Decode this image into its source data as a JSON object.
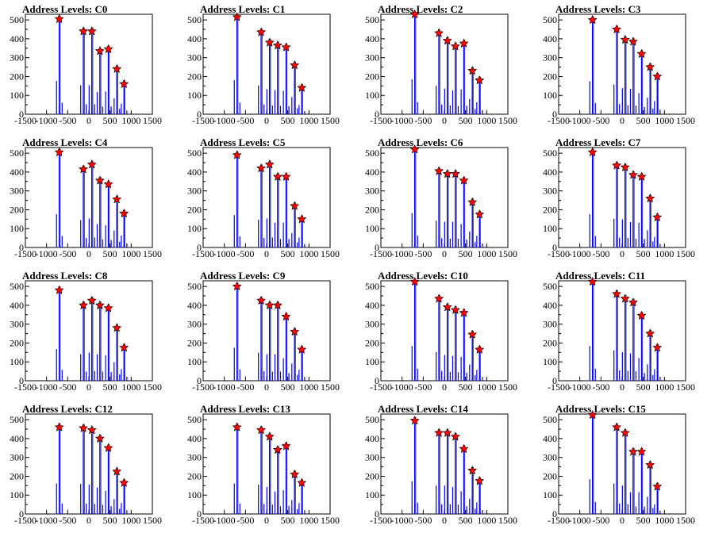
{
  "chart_data": {
    "type": "bar",
    "ytick_values": [
      0,
      100,
      200,
      300,
      400,
      500
    ],
    "xtick_values": [
      -1500,
      -1000,
      -500,
      0,
      500,
      1000,
      1500
    ],
    "xlim": [
      -1500,
      1500
    ],
    "ylim": [
      0,
      530
    ],
    "colors": {
      "bars": "#0000ff",
      "peaks": "#ff0000",
      "tallest_bar": "#000000"
    },
    "peak_x": [
      -700,
      -130,
      70,
      260,
      460,
      660,
      830
    ],
    "panels": [
      {
        "title": "Address Levels: C0",
        "peaks": [
          505,
          440,
          440,
          335,
          345,
          240,
          160
        ]
      },
      {
        "title": "Address Levels: C1",
        "peaks": [
          515,
          435,
          380,
          365,
          355,
          260,
          140
        ]
      },
      {
        "title": "Address Levels: C2",
        "peaks": [
          530,
          430,
          390,
          360,
          375,
          230,
          180
        ]
      },
      {
        "title": "Address Levels: C3",
        "peaks": [
          500,
          450,
          395,
          385,
          320,
          250,
          200
        ]
      },
      {
        "title": "Address Levels: C4",
        "peaks": [
          505,
          415,
          440,
          355,
          335,
          255,
          180
        ]
      },
      {
        "title": "Address Levels: C5",
        "peaks": [
          490,
          420,
          440,
          375,
          375,
          220,
          150
        ]
      },
      {
        "title": "Address Levels: C6",
        "peaks": [
          520,
          405,
          390,
          390,
          355,
          240,
          175
        ]
      },
      {
        "title": "Address Levels: C7",
        "peaks": [
          505,
          435,
          425,
          385,
          375,
          260,
          160
        ]
      },
      {
        "title": "Address Levels: C8",
        "peaks": [
          480,
          400,
          425,
          400,
          385,
          280,
          175
        ]
      },
      {
        "title": "Address Levels: C9",
        "peaks": [
          500,
          425,
          400,
          400,
          340,
          260,
          165
        ]
      },
      {
        "title": "Address Levels: C10",
        "peaks": [
          525,
          435,
          390,
          375,
          360,
          245,
          165
        ]
      },
      {
        "title": "Address Levels: C11",
        "peaks": [
          525,
          460,
          435,
          415,
          345,
          250,
          175
        ]
      },
      {
        "title": "Address Levels: C12",
        "peaks": [
          460,
          455,
          445,
          400,
          350,
          225,
          165
        ]
      },
      {
        "title": "Address Levels: C13",
        "peaks": [
          460,
          445,
          410,
          340,
          360,
          210,
          165
        ]
      },
      {
        "title": "Address Levels: C14",
        "peaks": [
          495,
          430,
          430,
          410,
          345,
          230,
          175
        ]
      },
      {
        "title": "Address Levels: C15",
        "peaks": [
          525,
          460,
          430,
          330,
          330,
          260,
          145
        ]
      }
    ]
  }
}
